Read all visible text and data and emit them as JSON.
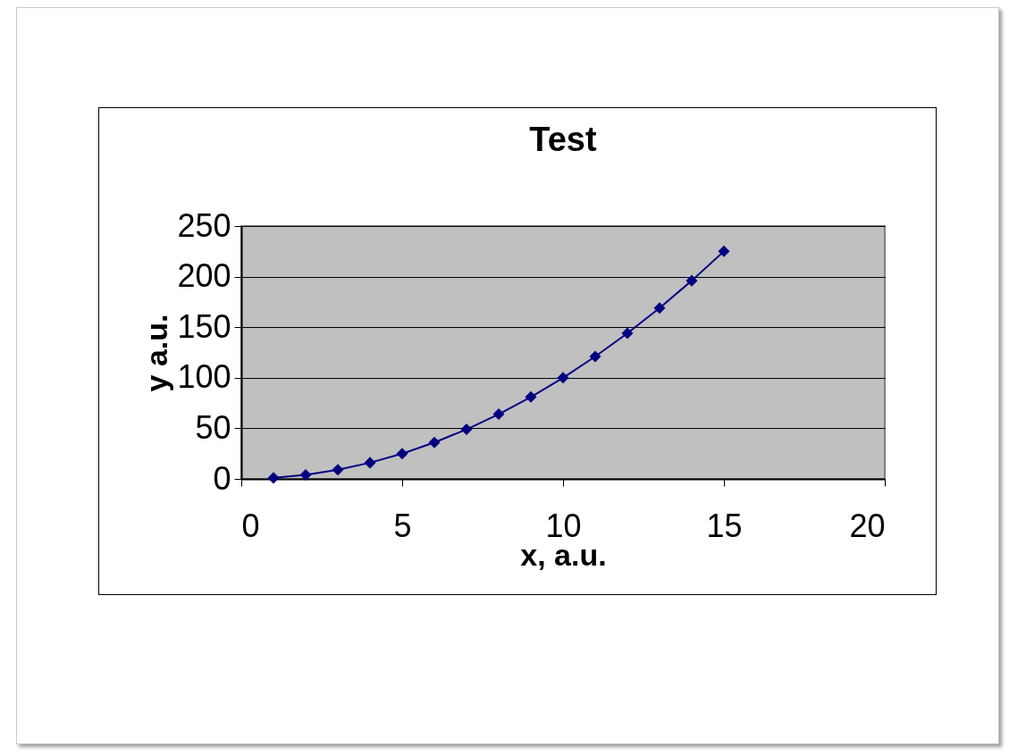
{
  "chart_data": {
    "type": "line",
    "title": "Test",
    "xlabel": "x, a.u.",
    "ylabel": "y a.u.",
    "x": [
      1,
      2,
      3,
      4,
      5,
      6,
      7,
      8,
      9,
      10,
      11,
      12,
      13,
      14,
      15
    ],
    "series": [
      {
        "color": "#000080",
        "values": [
          1,
          4,
          9,
          16,
          25,
          36,
          49,
          64,
          81,
          100,
          121,
          144,
          169,
          196,
          225
        ]
      }
    ],
    "xlim": [
      0,
      20
    ],
    "xticks": [
      0,
      5,
      10,
      15,
      20
    ],
    "ylim": [
      0,
      250
    ],
    "yticks": [
      0,
      50,
      100,
      150,
      200,
      250
    ],
    "grid": "y",
    "marker": "diamond",
    "line_style": "solid"
  }
}
